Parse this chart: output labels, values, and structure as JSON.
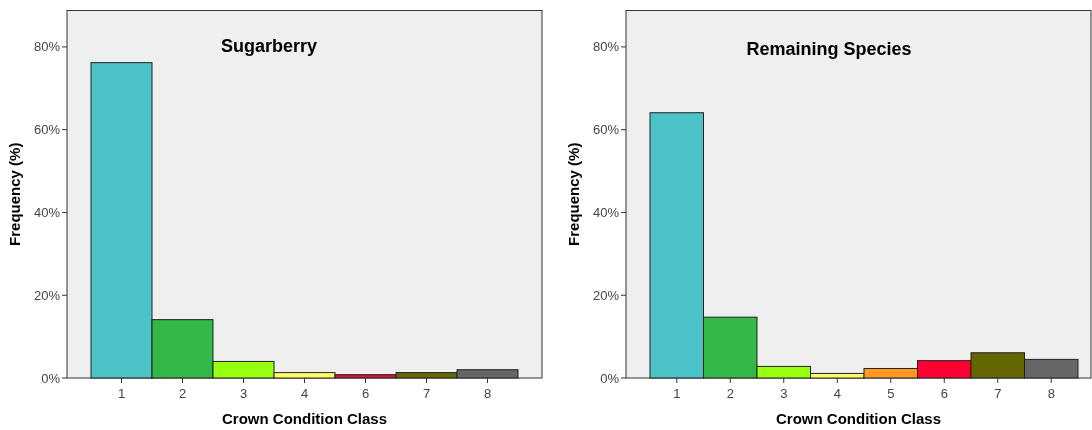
{
  "chart_data": [
    {
      "type": "bar",
      "title": "Sugarberry",
      "xlabel": "Crown Condition Class",
      "ylabel": "Frequency (%)",
      "categories": [
        "1",
        "2",
        "3",
        "4",
        "6",
        "7",
        "8"
      ],
      "values": [
        76.2,
        14.1,
        4.0,
        1.3,
        0.8,
        1.3,
        2.0
      ],
      "colors": [
        "#4ac2c7",
        "#32b846",
        "#99ff11",
        "#ffff66",
        "#dd1133",
        "#666600",
        "#666666"
      ],
      "ylim": [
        0,
        88.8
      ],
      "yticks": [
        {
          "value": 0,
          "label": "0%"
        },
        {
          "value": 20,
          "label": "20%"
        },
        {
          "value": 40,
          "label": "40%"
        },
        {
          "value": 60,
          "label": "60%"
        },
        {
          "value": 80,
          "label": "80%"
        }
      ],
      "grid": false
    },
    {
      "type": "bar",
      "title": "Remaining Species",
      "xlabel": "Crown Condition Class",
      "ylabel": "Frequency (%)",
      "categories": [
        "1",
        "2",
        "3",
        "4",
        "5",
        "6",
        "7",
        "8"
      ],
      "values": [
        64.1,
        14.7,
        2.8,
        1.1,
        2.3,
        4.2,
        6.1,
        4.5
      ],
      "colors": [
        "#4ac2c7",
        "#32b846",
        "#99ff11",
        "#ffff66",
        "#ff9922",
        "#ff0033",
        "#666600",
        "#666666"
      ],
      "ylim": [
        0,
        88.8
      ],
      "yticks": [
        {
          "value": 0,
          "label": "0%"
        },
        {
          "value": 20,
          "label": "20%"
        },
        {
          "value": 40,
          "label": "40%"
        },
        {
          "value": 60,
          "label": "60%"
        },
        {
          "value": 80,
          "label": "80%"
        }
      ],
      "grid": false
    }
  ]
}
